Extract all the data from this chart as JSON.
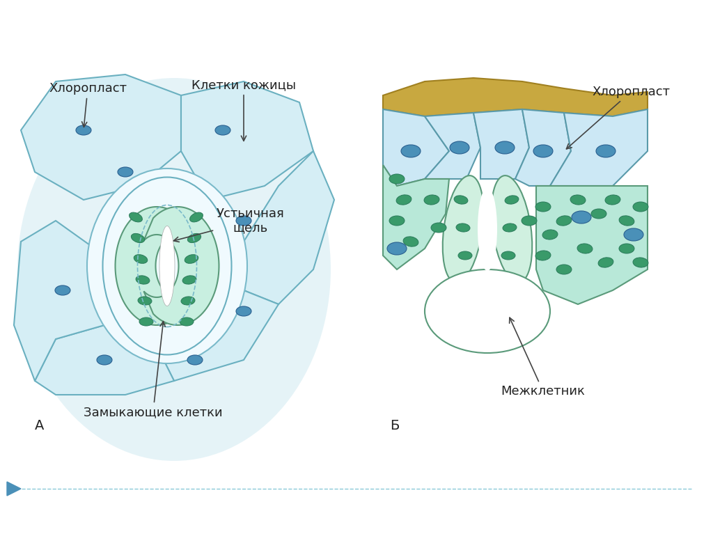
{
  "bg_color": "#ffffff",
  "cell_light_blue": "#b8dde8",
  "cell_mid_blue": "#8ecdd8",
  "cell_dark_outline": "#5a9aaa",
  "chloroplast_green": "#3a9a6a",
  "chloroplast_blue": "#4a90b8",
  "wall_color": "#c8a850",
  "guard_cell_color": "#d8f0e8",
  "stoma_green": "#2a7a5a",
  "label_color": "#222222",
  "label_fontsize": 13,
  "title_A": "А",
  "title_B": "Б",
  "label_chloroplast_A": "Хлоропласт",
  "label_skin_cells": "Клетки кожицы",
  "label_chloroplast_B": "Хлоропласт",
  "label_stoma_slit": "Устьичная\nщель",
  "label_guard_cells": "Замыкающие клетки",
  "label_intercell": "Межклетник",
  "bottom_line_color": "#5a9aaa",
  "arrow_color": "#444444"
}
